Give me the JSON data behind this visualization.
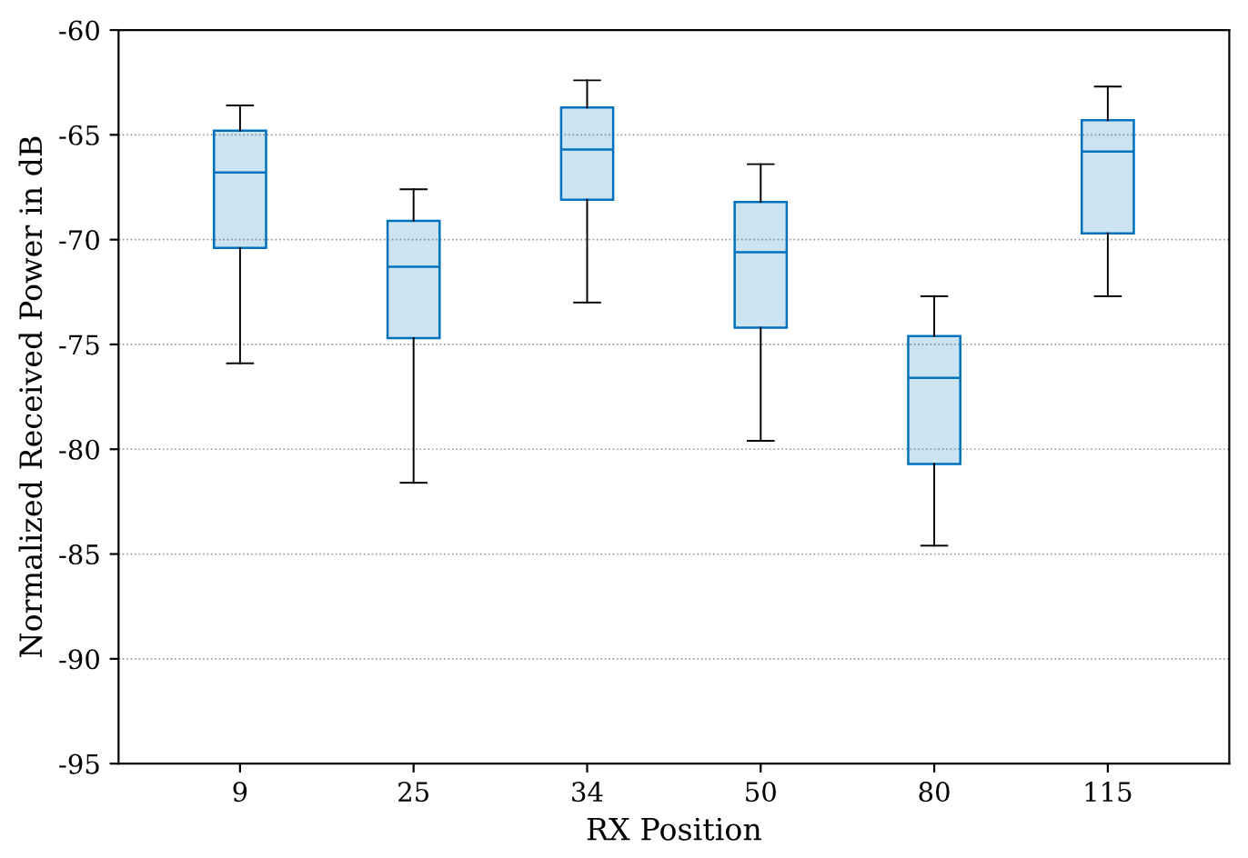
{
  "chart_data": {
    "type": "box",
    "xlabel": "RX Position",
    "ylabel": "Normalized Received Power in dB",
    "categories": [
      "9",
      "25",
      "34",
      "50",
      "80",
      "115"
    ],
    "boxes": [
      {
        "low": -75.9,
        "q1": -70.4,
        "median": -66.8,
        "q3": -64.8,
        "high": -63.6
      },
      {
        "low": -81.6,
        "q1": -74.7,
        "median": -71.3,
        "q3": -69.1,
        "high": -67.6
      },
      {
        "low": -73.0,
        "q1": -68.1,
        "median": -65.7,
        "q3": -63.7,
        "high": -62.4
      },
      {
        "low": -79.6,
        "q1": -74.2,
        "median": -70.6,
        "q3": -68.2,
        "high": -66.4
      },
      {
        "low": -84.6,
        "q1": -80.7,
        "median": -76.6,
        "q3": -74.6,
        "high": -72.7
      },
      {
        "low": -72.7,
        "q1": -69.7,
        "median": -65.8,
        "q3": -64.3,
        "high": -62.7
      }
    ],
    "color": "#0072bd",
    "ylim": [
      -95,
      -60
    ],
    "yticks": [
      -95,
      -90,
      -85,
      -80,
      -75,
      -70,
      -65,
      -60
    ],
    "grid": "y"
  }
}
